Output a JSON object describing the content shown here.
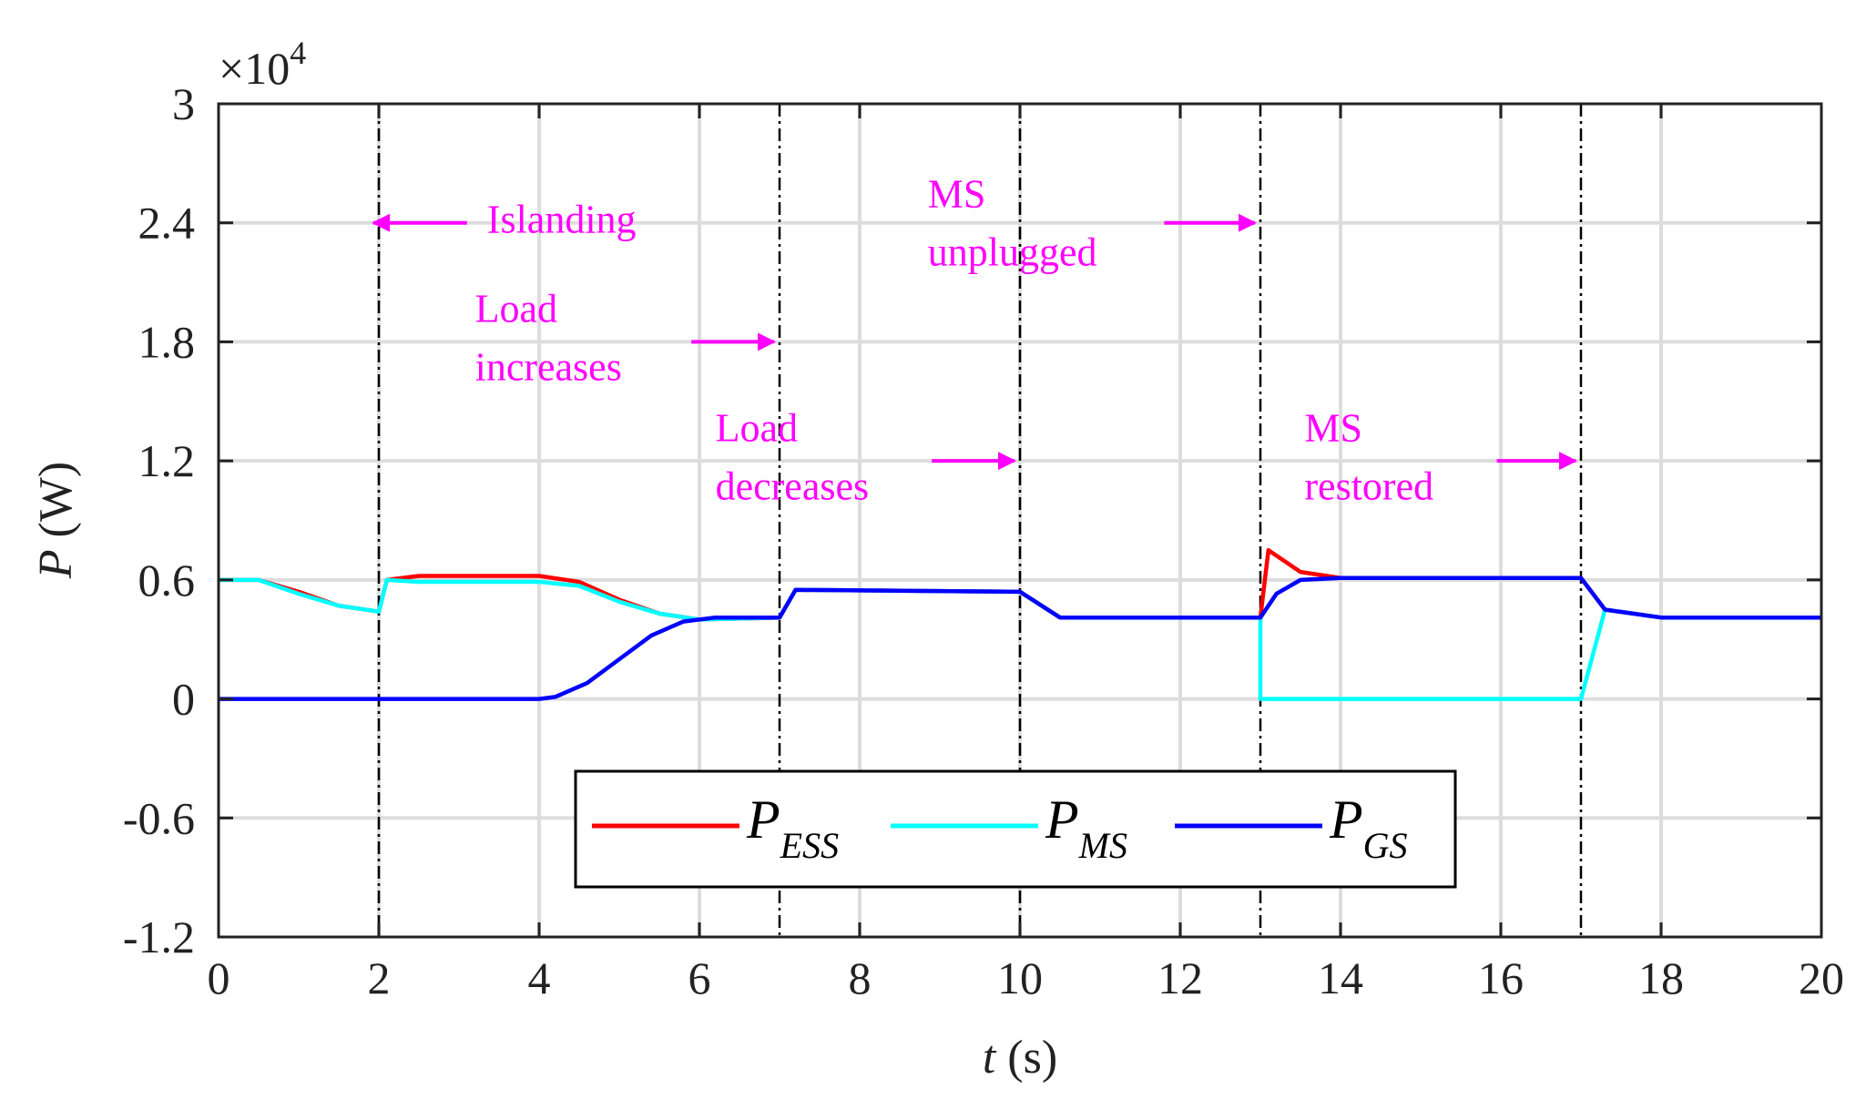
{
  "chart_data": {
    "type": "line",
    "xlabel_var": "t",
    "xlabel_unit": " (s)",
    "ylabel_var": "P",
    "ylabel_unit": " (W)",
    "y_exponent_label": "×10",
    "y_exponent_power": "4",
    "xlim": [
      0,
      20
    ],
    "ylim": [
      -1.2,
      3
    ],
    "x_ticks": [
      0,
      2,
      4,
      6,
      8,
      10,
      12,
      14,
      16,
      18,
      20
    ],
    "x_tick_labels": [
      "0",
      "2",
      "4",
      "6",
      "8",
      "10",
      "12",
      "14",
      "16",
      "18",
      "20"
    ],
    "y_ticks": [
      -1.2,
      -0.6,
      0,
      0.6,
      1.2,
      1.8,
      2.4,
      3
    ],
    "y_tick_labels": [
      "-1.2",
      "-0.6",
      "0",
      "0.6",
      "1.2",
      "1.8",
      "2.4",
      "3"
    ],
    "grid": true,
    "event_lines": [
      2,
      7,
      10,
      13,
      17
    ],
    "annotations": [
      {
        "lines": [
          "Islanding"
        ],
        "text_x": 3.35,
        "text_y": 2.35,
        "arrow_from": [
          3.1,
          2.4
        ],
        "arrow_to": [
          2.0,
          2.4
        ]
      },
      {
        "lines": [
          "Load",
          "increases"
        ],
        "text_x": 3.2,
        "text_y": 1.9,
        "arrow_from": [
          5.9,
          1.8
        ],
        "arrow_to": [
          7.0,
          1.8
        ]
      },
      {
        "lines": [
          "Load",
          "decreases"
        ],
        "text_x": 6.2,
        "text_y": 1.3,
        "arrow_from": [
          8.9,
          1.2
        ],
        "arrow_to": [
          10.0,
          1.2
        ]
      },
      {
        "lines": [
          "MS",
          "unplugged"
        ],
        "text_x": 8.85,
        "text_y": 2.48,
        "arrow_from": [
          11.8,
          2.4
        ],
        "arrow_to": [
          13.0,
          2.4
        ]
      },
      {
        "lines": [
          "MS",
          "restored"
        ],
        "text_x": 13.55,
        "text_y": 1.3,
        "arrow_from": [
          15.95,
          1.2
        ],
        "arrow_to": [
          17.0,
          1.2
        ]
      }
    ],
    "legend_position": "bottom-center",
    "series": [
      {
        "name": "P",
        "sub": "ESS",
        "color": "#ff0000",
        "points": [
          [
            0,
            0.6
          ],
          [
            0.5,
            0.6
          ],
          [
            1.0,
            0.54
          ],
          [
            1.5,
            0.47
          ],
          [
            2.0,
            0.44
          ],
          [
            2.1,
            0.6
          ],
          [
            2.5,
            0.62
          ],
          [
            4.0,
            0.62
          ],
          [
            4.5,
            0.59
          ],
          [
            5.0,
            0.5
          ],
          [
            5.5,
            0.43
          ],
          [
            6.0,
            0.4
          ],
          [
            7.0,
            0.41
          ],
          [
            7.2,
            0.55
          ],
          [
            10.0,
            0.54
          ],
          [
            10.5,
            0.41
          ],
          [
            13.0,
            0.41
          ],
          [
            13.1,
            0.75
          ],
          [
            13.5,
            0.64
          ],
          [
            14.0,
            0.61
          ],
          [
            17.0,
            0.61
          ],
          [
            17.3,
            0.45
          ],
          [
            18.0,
            0.41
          ],
          [
            20.0,
            0.41
          ]
        ]
      },
      {
        "name": "P",
        "sub": "MS",
        "color": "#00ffff",
        "points": [
          [
            0,
            0.6
          ],
          [
            0.5,
            0.6
          ],
          [
            1.0,
            0.53
          ],
          [
            1.5,
            0.47
          ],
          [
            2.0,
            0.44
          ],
          [
            2.1,
            0.6
          ],
          [
            2.5,
            0.59
          ],
          [
            4.0,
            0.59
          ],
          [
            4.5,
            0.57
          ],
          [
            5.0,
            0.49
          ],
          [
            5.5,
            0.43
          ],
          [
            6.0,
            0.4
          ],
          [
            7.0,
            0.41
          ],
          [
            7.2,
            0.55
          ],
          [
            10.0,
            0.54
          ],
          [
            10.5,
            0.41
          ],
          [
            13.0,
            0.41
          ],
          [
            13.0,
            0
          ],
          [
            17.0,
            0
          ],
          [
            17.3,
            0.45
          ],
          [
            18.0,
            0.41
          ],
          [
            20.0,
            0.41
          ]
        ]
      },
      {
        "name": "P",
        "sub": "GS",
        "color": "#0000ff",
        "points": [
          [
            0,
            0
          ],
          [
            2.0,
            0
          ],
          [
            4.0,
            0
          ],
          [
            4.2,
            0.01
          ],
          [
            4.6,
            0.08
          ],
          [
            5.0,
            0.2
          ],
          [
            5.4,
            0.32
          ],
          [
            5.8,
            0.39
          ],
          [
            6.2,
            0.41
          ],
          [
            7.0,
            0.41
          ],
          [
            7.2,
            0.55
          ],
          [
            10.0,
            0.54
          ],
          [
            10.5,
            0.41
          ],
          [
            13.0,
            0.41
          ],
          [
            13.2,
            0.53
          ],
          [
            13.5,
            0.6
          ],
          [
            14.0,
            0.61
          ],
          [
            17.0,
            0.61
          ],
          [
            17.3,
            0.45
          ],
          [
            18.0,
            0.41
          ],
          [
            20.0,
            0.41
          ]
        ]
      }
    ]
  }
}
